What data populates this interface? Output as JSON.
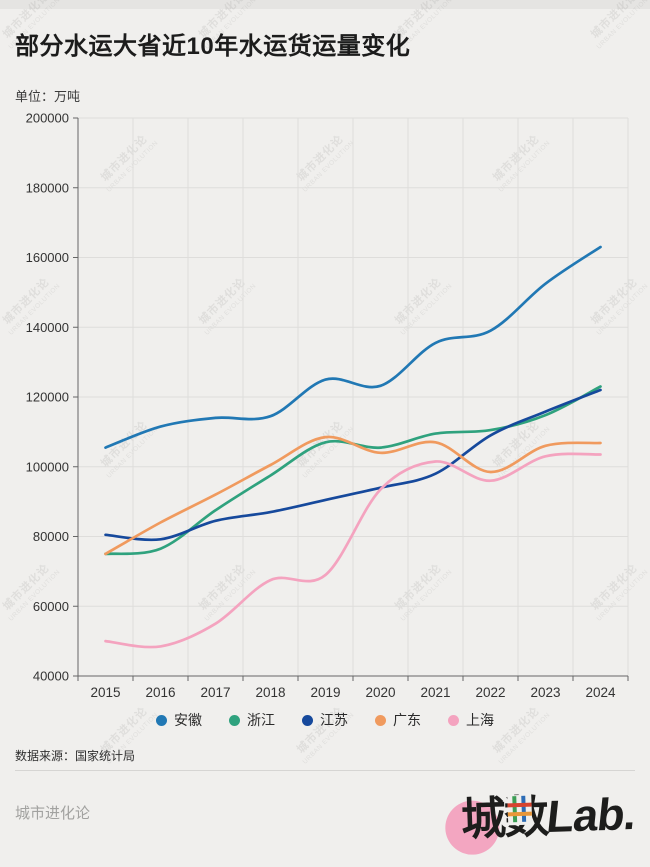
{
  "title": "部分水运大省近10年水运货运量变化",
  "unit_label": "单位：万吨",
  "source": "数据来源：国家统计局",
  "footer_left": "城市进化论",
  "watermark": {
    "line1": "城市进化论",
    "line2": "URBAN EVOLUTION"
  },
  "logo": {
    "cheng": "城",
    "shu": "数",
    "lab": "Lab."
  },
  "colors": {
    "background": "#f0efed",
    "grid": "#dedddb",
    "axis": "#666666",
    "tick_text": "#333333"
  },
  "chart_data": {
    "type": "line",
    "smooth": true,
    "grid": true,
    "legend_position": "bottom",
    "x": [
      2015,
      2016,
      2017,
      2018,
      2019,
      2020,
      2021,
      2022,
      2023,
      2024
    ],
    "ylim": [
      40000,
      200000
    ],
    "yticks": [
      40000,
      60000,
      80000,
      100000,
      120000,
      140000,
      160000,
      180000,
      200000
    ],
    "series": [
      {
        "name": "安徽",
        "color": "#2178b4",
        "values": [
          105500,
          111500,
          114000,
          114500,
          125000,
          123200,
          135500,
          139000,
          152500,
          163000
        ]
      },
      {
        "name": "浙江",
        "color": "#2fa27e",
        "values": [
          75000,
          76500,
          87500,
          97500,
          107000,
          105500,
          109500,
          110500,
          114800,
          123000
        ]
      },
      {
        "name": "江苏",
        "color": "#16499c",
        "values": [
          80500,
          79200,
          84500,
          87000,
          90500,
          94000,
          98000,
          109000,
          115800,
          122000
        ]
      },
      {
        "name": "广东",
        "color": "#f09a5e",
        "values": [
          75000,
          84000,
          92000,
          100500,
          108500,
          104000,
          107000,
          98500,
          106000,
          106800
        ]
      },
      {
        "name": "上海",
        "color": "#f4a3bf",
        "values": [
          50000,
          48500,
          55000,
          67500,
          69000,
          93500,
          101500,
          96000,
          103000,
          103500
        ]
      }
    ]
  }
}
